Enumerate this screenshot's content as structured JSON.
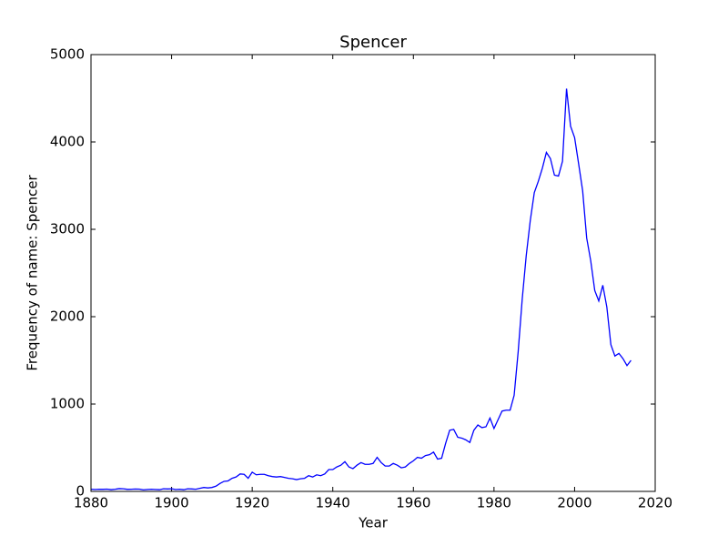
{
  "chart_data": {
    "type": "line",
    "title": "Spencer",
    "x_label": "Year",
    "y_label": "Frequency of name: Spencer",
    "x": [
      1880,
      1881,
      1882,
      1883,
      1884,
      1885,
      1886,
      1887,
      1888,
      1889,
      1890,
      1891,
      1892,
      1893,
      1894,
      1895,
      1896,
      1897,
      1898,
      1899,
      1900,
      1901,
      1902,
      1903,
      1904,
      1905,
      1906,
      1907,
      1908,
      1909,
      1910,
      1911,
      1912,
      1913,
      1914,
      1915,
      1916,
      1917,
      1918,
      1919,
      1920,
      1921,
      1922,
      1923,
      1924,
      1925,
      1926,
      1927,
      1928,
      1929,
      1930,
      1931,
      1932,
      1933,
      1934,
      1935,
      1936,
      1937,
      1938,
      1939,
      1940,
      1941,
      1942,
      1943,
      1944,
      1945,
      1946,
      1947,
      1948,
      1949,
      1950,
      1951,
      1952,
      1953,
      1954,
      1955,
      1956,
      1957,
      1958,
      1959,
      1960,
      1961,
      1962,
      1963,
      1964,
      1965,
      1966,
      1967,
      1968,
      1969,
      1970,
      1971,
      1972,
      1973,
      1974,
      1975,
      1976,
      1977,
      1978,
      1979,
      1980,
      1981,
      1982,
      1983,
      1984,
      1985,
      1986,
      1987,
      1988,
      1989,
      1990,
      1991,
      1992,
      1993,
      1994,
      1995,
      1996,
      1997,
      1998,
      1999,
      2000,
      2001,
      2002,
      2003,
      2004,
      2005,
      2006,
      2007,
      2008,
      2009,
      2010,
      2011,
      2012,
      2013,
      2014
    ],
    "series": [
      {
        "name": "Spencer",
        "color": "#0000ff",
        "values": [
          25,
          22,
          25,
          24,
          26,
          20,
          25,
          32,
          30,
          24,
          25,
          27,
          26,
          18,
          22,
          25,
          22,
          20,
          30,
          28,
          30,
          22,
          25,
          20,
          30,
          28,
          25,
          35,
          45,
          40,
          45,
          60,
          90,
          115,
          120,
          150,
          165,
          200,
          195,
          150,
          220,
          190,
          195,
          195,
          180,
          170,
          165,
          170,
          160,
          150,
          145,
          135,
          145,
          150,
          180,
          165,
          190,
          180,
          200,
          250,
          250,
          280,
          300,
          340,
          280,
          260,
          300,
          330,
          310,
          310,
          320,
          390,
          330,
          290,
          290,
          320,
          300,
          270,
          280,
          320,
          350,
          390,
          380,
          410,
          420,
          450,
          370,
          380,
          550,
          700,
          710,
          620,
          610,
          590,
          560,
          700,
          760,
          730,
          740,
          840,
          720,
          820,
          920,
          930,
          930,
          1100,
          1600,
          2200,
          2700,
          3100,
          3420,
          3550,
          3700,
          3880,
          3810,
          3620,
          3610,
          3780,
          4610,
          4180,
          4050,
          3750,
          3440,
          2900,
          2640,
          2300,
          2180,
          2360,
          2110,
          1680,
          1550,
          1580,
          1520,
          1440,
          1500
        ]
      }
    ],
    "xlim": [
      1880,
      2020
    ],
    "xticks": [
      1880,
      1900,
      1920,
      1940,
      1960,
      1980,
      2000,
      2020
    ],
    "ylim": [
      0,
      5000
    ],
    "yticks": [
      0,
      1000,
      2000,
      3000,
      4000,
      5000
    ]
  }
}
